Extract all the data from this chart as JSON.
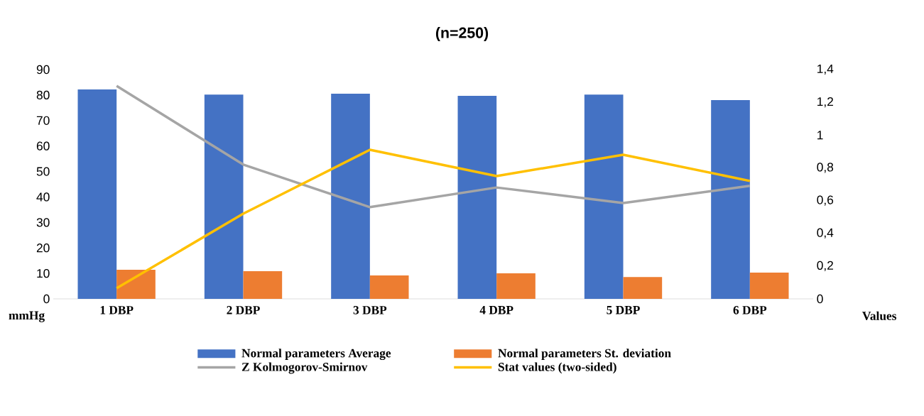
{
  "chart_data": {
    "type": "bar",
    "title": "(n=250)",
    "ylabel": "mmHg",
    "y2label": "Values",
    "categories": [
      "1 DBP",
      "2 DBP",
      "3 DBP",
      "4 DBP",
      "5 DBP",
      "6 DBP"
    ],
    "series": [
      {
        "name": "Normal parameters Average",
        "color": "#4472c4",
        "values": [
          82.2,
          80.2,
          80.5,
          79.7,
          80.2,
          78.0
        ]
      },
      {
        "name": "Normal parameters St. deviation",
        "color": "#ed7d31",
        "values": [
          11.4,
          10.9,
          9.2,
          10.0,
          8.6,
          10.3
        ]
      },
      {
        "name": "Z Kolmogorov-Smirnov",
        "type": "line",
        "axis": "y2",
        "color": "#a5a5a5",
        "values": [
          1.3,
          0.82,
          0.56,
          0.68,
          0.585,
          0.69
        ]
      },
      {
        "name": "Stat values (two-sided)",
        "type": "line",
        "axis": "y2",
        "color": "#ffc000",
        "values": [
          0.065,
          0.52,
          0.91,
          0.75,
          0.88,
          0.72
        ]
      }
    ],
    "ylim": [
      0,
      90
    ],
    "yticks": [
      0,
      10,
      20,
      30,
      40,
      50,
      60,
      70,
      80,
      90
    ],
    "y2lim": [
      0,
      1.4
    ],
    "y2ticks": [
      {
        "value": 0,
        "label": "0"
      },
      {
        "value": 0.2,
        "label": "0,2"
      },
      {
        "value": 0.4,
        "label": "0,4"
      },
      {
        "value": 0.6,
        "label": "0,6"
      },
      {
        "value": 0.8,
        "label": "0,8"
      },
      {
        "value": 1,
        "label": "1"
      },
      {
        "value": 1.2,
        "label": "1,2"
      },
      {
        "value": 1.4,
        "label": "1,4"
      }
    ],
    "grid": false,
    "legend": "bottom",
    "marker": "none",
    "line_style": "solid"
  }
}
